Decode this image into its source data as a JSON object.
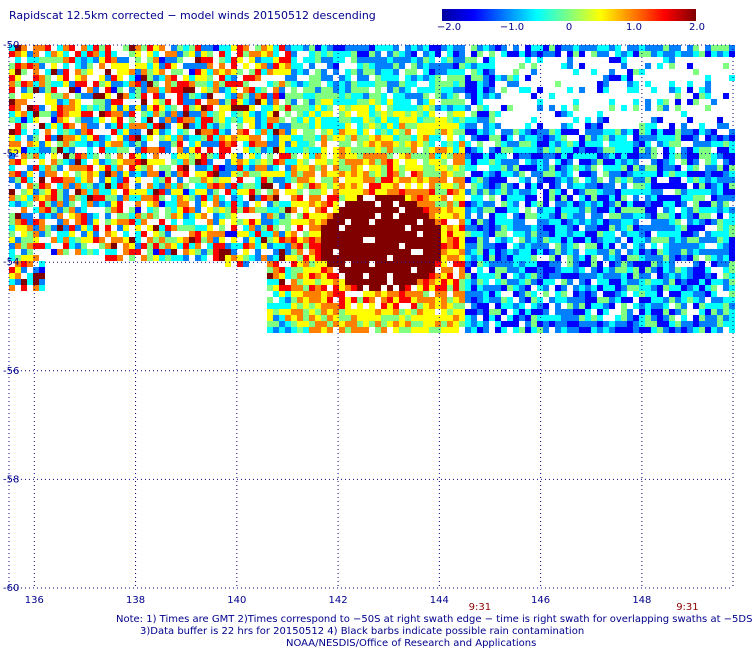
{
  "title": "Rapidscat 12.5km corrected − model winds 20150512 descending",
  "colorbar": {
    "stops": [
      "#0000a0",
      "#0000ff",
      "#0080ff",
      "#00ffff",
      "#80ff80",
      "#ffff00",
      "#ff8000",
      "#ff0000",
      "#800000"
    ],
    "labels": [
      "−2.0",
      "−1.0",
      "0",
      "1.0",
      "2.0"
    ],
    "range": [
      -2.0,
      2.0
    ]
  },
  "map": {
    "lat_range": [
      -60,
      -50
    ],
    "lon_range": [
      135.5,
      149.8
    ],
    "lat_ticks": [
      {
        "value": -50,
        "label": "-50"
      },
      {
        "value": -52,
        "label": "-52"
      },
      {
        "value": -54,
        "label": "-54"
      },
      {
        "value": -56,
        "label": "-56"
      },
      {
        "value": -58,
        "label": "-58"
      },
      {
        "value": -60,
        "label": "-60"
      }
    ],
    "lon_ticks": [
      {
        "value": 136,
        "label": "136"
      },
      {
        "value": 138,
        "label": "138"
      },
      {
        "value": 140,
        "label": "140"
      },
      {
        "value": 142,
        "label": "142"
      },
      {
        "value": 144,
        "label": "144"
      },
      {
        "value": 146,
        "label": "146"
      },
      {
        "value": 148,
        "label": "148"
      }
    ],
    "swath_times": [
      {
        "lon": 144.8,
        "label": "9:31"
      },
      {
        "lon": 148.9,
        "label": "9:31"
      }
    ],
    "grid_color": "#00008b"
  },
  "notes": {
    "line1": "Note: 1) Times are GMT 2)Times correspond to −50S at right swath edge − time is right swath for overlapping swaths at −5DS",
    "line2": "3)Data buffer is 22 hrs for 20150512 4) Black barbs indicate possible rain contamination",
    "line3": "NOAA/NESDIS/Office of Research and Applications"
  }
}
